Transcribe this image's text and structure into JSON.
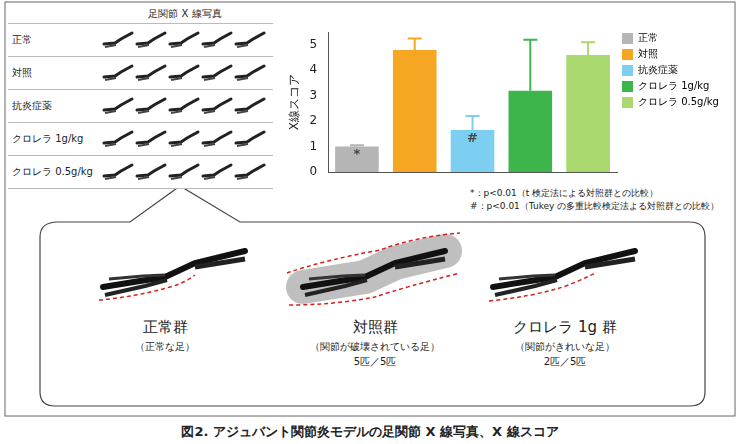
{
  "figure_title": "図2. アジュバント関節炎モデルの足関節 X 線写真、X 線スコア",
  "xray_table": {
    "header": "足関節 X 線写真",
    "rows": [
      "正常",
      "対照",
      "抗炎症薬",
      "クロレラ 1g/kg",
      "クロレラ 0.5g/kg"
    ]
  },
  "chart_data": {
    "type": "bar",
    "y_label": "X線スコア",
    "categories": [
      "正常",
      "対照",
      "抗炎症薬",
      "クロレラ 1g/kg",
      "クロレラ 0.5g/kg"
    ],
    "values": [
      1.0,
      4.8,
      1.65,
      3.2,
      4.6
    ],
    "error": [
      0.05,
      0.45,
      0.55,
      2.0,
      0.5
    ],
    "colors": [
      "#b5b5b5",
      "#f5a623",
      "#7ccff0",
      "#3db54a",
      "#a8d86e"
    ],
    "ylim": [
      0,
      5.5
    ],
    "yticks": [
      0,
      1,
      2,
      3,
      4,
      5
    ],
    "grid": false,
    "legend": "right",
    "tick_labels": "y",
    "annotations": [
      {
        "category": "正常",
        "text": "*"
      },
      {
        "category": "抗炎症薬",
        "text": "#"
      }
    ],
    "notes": [
      "*：p<0.01（t 検定法による対照群との比較）",
      "#：p<0.01（Tukey の多重比較検定法よる対照群との比較）"
    ]
  },
  "detail_panel": {
    "groups": [
      {
        "name": "正常群",
        "description": "（正常な足）"
      },
      {
        "name": "対照群",
        "description": "（関節が破壊されている足）",
        "count": "5匹／5匹"
      },
      {
        "name": "クロレラ 1g 群",
        "description": "（関節がきれいな足）",
        "count": "2匹／5匹"
      }
    ]
  }
}
